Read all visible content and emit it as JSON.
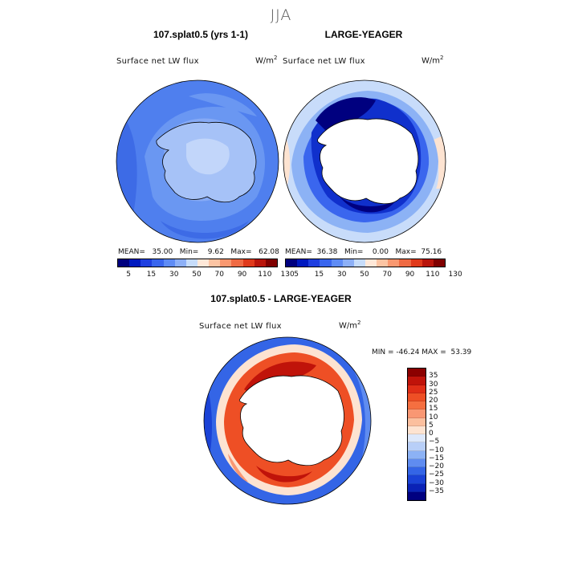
{
  "season": "JJA",
  "panels": {
    "model": {
      "title": "107.splat0.5 (yrs 1-1)",
      "field": "Surface net LW flux",
      "units": "W/m",
      "units_sup": "2"
    },
    "obs": {
      "title": "LARGE-YEAGER",
      "field": "Surface net LW flux",
      "units": "W/m",
      "units_sup": "2"
    },
    "diff": {
      "title": "107.splat0.5 - LARGE-YEAGER",
      "field": "Surface net LW flux",
      "units": "W/m",
      "units_sup": "2",
      "stats": "MIN = -46.24 MAX =  53.39"
    }
  },
  "stats_model": "MEAN=   35.00   Min=    9.62   Max=   62.08",
  "stats_obs": "MEAN=  36.38   Min=    0.00   Max=  75.16",
  "colorbar_top": {
    "colors": [
      "#00007f",
      "#0019bf",
      "#1f3fe0",
      "#3a66ee",
      "#5f8cf5",
      "#8db0f7",
      "#c6dcfa",
      "#ffe8d8",
      "#fcc4a3",
      "#f99870",
      "#ef6a43",
      "#e03a1b",
      "#b9150b",
      "#800000"
    ],
    "ticks": [
      "5",
      "15",
      "30",
      "50",
      "70",
      "90",
      "110",
      "130"
    ]
  },
  "colorbar_diff": {
    "colors": [
      "#8b0000",
      "#c0130a",
      "#e02e17",
      "#ee4f25",
      "#f56f40",
      "#f99773",
      "#fbbf9e",
      "#fde3d1",
      "#dde8fb",
      "#b8cff8",
      "#8cb2f5",
      "#5f8cf0",
      "#3465e6",
      "#1a42d6",
      "#0a22b6",
      "#000080"
    ],
    "ticks": [
      "35",
      "30",
      "25",
      "20",
      "15",
      "10",
      "5",
      "0",
      "−5",
      "−10",
      "−15",
      "−20",
      "−25",
      "−30",
      "−35"
    ]
  }
}
